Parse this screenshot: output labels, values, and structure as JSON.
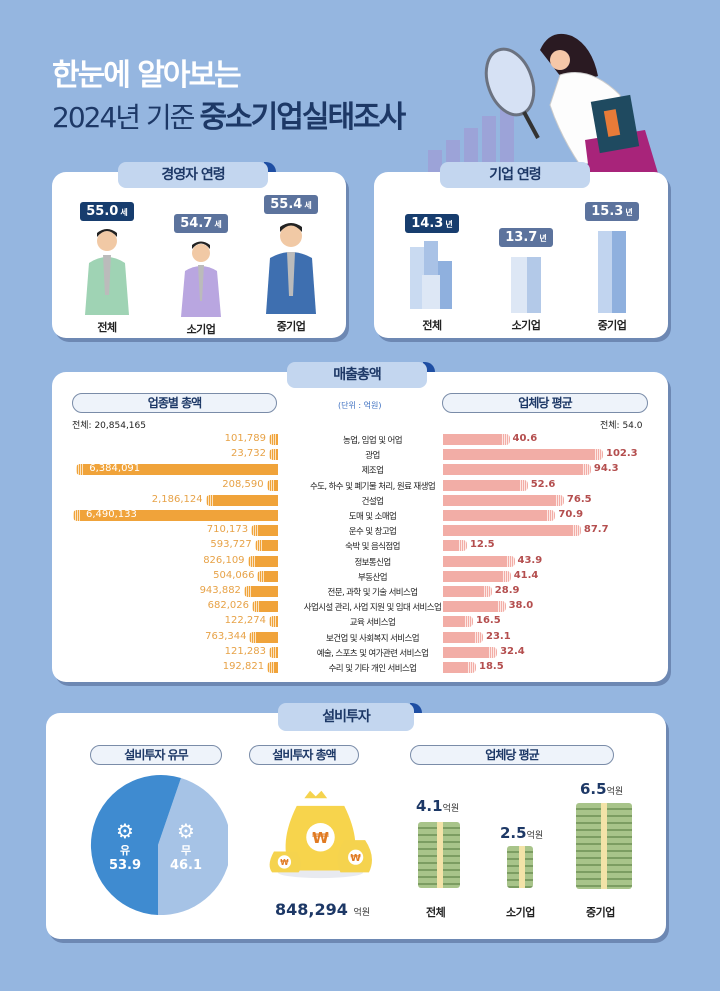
{
  "header": {
    "line1": "한눈에 알아보는",
    "line2_prefix": "2024년 기준",
    "line2_bold": "중소기업실태조사"
  },
  "ceo_age": {
    "title": "경영자 연령",
    "items": [
      {
        "label": "전체",
        "value": "55.0",
        "unit": "세"
      },
      {
        "label": "소기업",
        "value": "54.7",
        "unit": "세"
      },
      {
        "label": "중기업",
        "value": "55.4",
        "unit": "세"
      }
    ]
  },
  "company_age": {
    "title": "기업 연령",
    "items": [
      {
        "label": "전체",
        "value": "14.3",
        "unit": "년"
      },
      {
        "label": "소기업",
        "value": "13.7",
        "unit": "년"
      },
      {
        "label": "중기업",
        "value": "15.3",
        "unit": "년"
      }
    ]
  },
  "sales": {
    "title": "매출총액",
    "left_header": "업종별 총액",
    "right_header": "업체당 평균",
    "unit": "(단위 : 억원)",
    "left_total": "전체: 20,854,165",
    "right_total": "전체: 54.0"
  },
  "capex": {
    "title": "설비투자",
    "presence": {
      "header": "설비투자 유무",
      "yes_label": "유",
      "yes_value": "53.9",
      "no_label": "무",
      "no_value": "46.1"
    },
    "total": {
      "header": "설비투자 총액",
      "value": "848,294",
      "unit": "억원"
    },
    "average": {
      "header": "업체당 평균",
      "items": [
        {
          "label": "전체",
          "value": "4.1",
          "unit": "억원"
        },
        {
          "label": "소기업",
          "value": "2.5",
          "unit": "억원"
        },
        {
          "label": "중기업",
          "value": "6.5",
          "unit": "억원"
        }
      ]
    }
  },
  "colors": {
    "background": "#95b6e0",
    "orange_bar": "#f0a33a",
    "pink_bar": "#f2ada6",
    "pie_yes": "#3f8bd0",
    "pie_no": "#a6c3e6",
    "navy": "#1d3866"
  },
  "chart_data": [
    {
      "type": "bar",
      "title": "업종별 총액",
      "unit": "억원",
      "total": 20854165,
      "categories": [
        "농업, 임업 및 어업",
        "광업",
        "제조업",
        "수도, 하수 및 폐기물 처리, 원료 재생업",
        "건설업",
        "도매 및 소매업",
        "운수 및 창고업",
        "숙박 및 음식점업",
        "정보통신업",
        "부동산업",
        "전문, 과학 및 기술 서비스업",
        "사업시설 관리, 사업 지원 및 임대 서비스업",
        "교육 서비스업",
        "보건업 및 사회복지 서비스업",
        "예술, 스포츠 및 여가관련 서비스업",
        "수리 및 기타 개인 서비스업"
      ],
      "values": [
        101789,
        23732,
        6384091,
        208590,
        2186124,
        6490133,
        710173,
        593727,
        826109,
        504066,
        943882,
        682026,
        122274,
        763344,
        121283,
        192821
      ],
      "labels": [
        "101,789",
        "23,732",
        "6,384,091",
        "208,590",
        "2,186,124",
        "6,490,133",
        "710,173",
        "593,727",
        "826,109",
        "504,066",
        "943,882",
        "682,026",
        "122,274",
        "763,344",
        "121,283",
        "192,821"
      ],
      "orientation": "horizontal-left"
    },
    {
      "type": "bar",
      "title": "업체당 평균",
      "unit": "억원",
      "total": 54.0,
      "categories": [
        "농업, 임업 및 어업",
        "광업",
        "제조업",
        "수도, 하수 및 폐기물 처리, 원료 재생업",
        "건설업",
        "도매 및 소매업",
        "운수 및 창고업",
        "숙박 및 음식점업",
        "정보통신업",
        "부동산업",
        "전문, 과학 및 기술 서비스업",
        "사업시설 관리, 사업 지원 및 임대 서비스업",
        "교육 서비스업",
        "보건업 및 사회복지 서비스업",
        "예술, 스포츠 및 여가관련 서비스업",
        "수리 및 기타 개인 서비스업"
      ],
      "values": [
        40.6,
        102.3,
        94.3,
        52.6,
        76.5,
        70.9,
        87.7,
        12.5,
        43.9,
        41.4,
        28.9,
        38.0,
        16.5,
        23.1,
        32.4,
        18.5
      ],
      "labels": [
        "40.6",
        "102.3",
        "94.3",
        "52.6",
        "76.5",
        "70.9",
        "87.7",
        "12.5",
        "43.9",
        "41.4",
        "28.9",
        "38.0",
        "16.5",
        "23.1",
        "32.4",
        "18.5"
      ],
      "orientation": "horizontal-right"
    },
    {
      "type": "pie",
      "title": "설비투자 유무",
      "categories": [
        "유",
        "무"
      ],
      "values": [
        53.9,
        46.1
      ]
    },
    {
      "type": "bar",
      "title": "설비투자 업체당 평균",
      "unit": "억원",
      "categories": [
        "전체",
        "소기업",
        "중기업"
      ],
      "values": [
        4.1,
        2.5,
        6.5
      ]
    },
    {
      "type": "bar",
      "title": "경영자 연령",
      "unit": "세",
      "categories": [
        "전체",
        "소기업",
        "중기업"
      ],
      "values": [
        55.0,
        54.7,
        55.4
      ]
    },
    {
      "type": "bar",
      "title": "기업 연령",
      "unit": "년",
      "categories": [
        "전체",
        "소기업",
        "중기업"
      ],
      "values": [
        14.3,
        13.7,
        15.3
      ]
    }
  ]
}
